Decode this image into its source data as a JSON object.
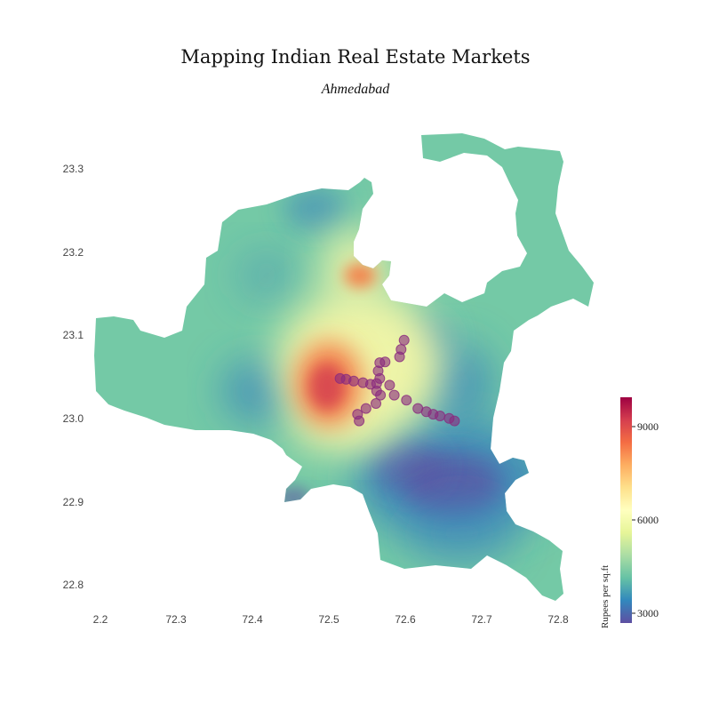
{
  "header": {
    "title": "Mapping Indian Real Estate Markets",
    "subtitle": "Ahmedabad"
  },
  "axes": {
    "x_ticks": [
      "2.2",
      "72.3",
      "72.4",
      "72.5",
      "72.6",
      "72.7",
      "72.8"
    ],
    "y_ticks": [
      "23.3",
      "23.2",
      "23.1",
      "23.0",
      "22.9",
      "22.8"
    ]
  },
  "colorbar": {
    "label": "Rupees per sq.ft",
    "ticks": [
      "9000",
      "6000",
      "3000"
    ],
    "range": [
      2700,
      9900
    ],
    "colors": [
      "#5e4fa2",
      "#3288bd",
      "#66c2a5",
      "#abdda4",
      "#e6f598",
      "#ffffbf",
      "#fee08b",
      "#fdae61",
      "#f46d43",
      "#d53e4f",
      "#9e0142"
    ]
  },
  "map_colors": {
    "base_green": "#74c9a6",
    "blue": "#3b86bb",
    "purple": "#5e4fa2",
    "yellow": "#f4f7a8",
    "orange": "#f57c45",
    "red": "#d53e4f",
    "marker": "#8a2a7e"
  },
  "chart_data": {
    "type": "heatmap",
    "title": "Mapping Indian Real Estate Markets",
    "subtitle": "Ahmedabad",
    "colorbar_label": "Rupees per sq.ft",
    "colorbar_range": [
      2700,
      9900
    ],
    "xlim": [
      72.19,
      72.82
    ],
    "ylim": [
      22.77,
      23.34
    ],
    "metro_stations": [
      {
        "x": 72.515,
        "y": 23.048
      },
      {
        "x": 72.523,
        "y": 23.047
      },
      {
        "x": 72.533,
        "y": 23.045
      },
      {
        "x": 72.545,
        "y": 23.043
      },
      {
        "x": 72.555,
        "y": 23.041
      },
      {
        "x": 72.563,
        "y": 23.042
      },
      {
        "x": 72.567,
        "y": 23.048
      },
      {
        "x": 72.565,
        "y": 23.057
      },
      {
        "x": 72.567,
        "y": 23.067
      },
      {
        "x": 72.574,
        "y": 23.068
      },
      {
        "x": 72.593,
        "y": 23.074
      },
      {
        "x": 72.595,
        "y": 23.083
      },
      {
        "x": 72.599,
        "y": 23.094
      },
      {
        "x": 72.563,
        "y": 23.033
      },
      {
        "x": 72.568,
        "y": 23.028
      },
      {
        "x": 72.562,
        "y": 23.018
      },
      {
        "x": 72.549,
        "y": 23.012
      },
      {
        "x": 72.538,
        "y": 23.005
      },
      {
        "x": 72.54,
        "y": 22.997
      },
      {
        "x": 72.58,
        "y": 23.04
      },
      {
        "x": 72.586,
        "y": 23.028
      },
      {
        "x": 72.602,
        "y": 23.022
      },
      {
        "x": 72.617,
        "y": 23.012
      },
      {
        "x": 72.628,
        "y": 23.008
      },
      {
        "x": 72.637,
        "y": 23.005
      },
      {
        "x": 72.646,
        "y": 23.003
      },
      {
        "x": 72.658,
        "y": 23.0
      },
      {
        "x": 72.665,
        "y": 22.997
      }
    ]
  }
}
